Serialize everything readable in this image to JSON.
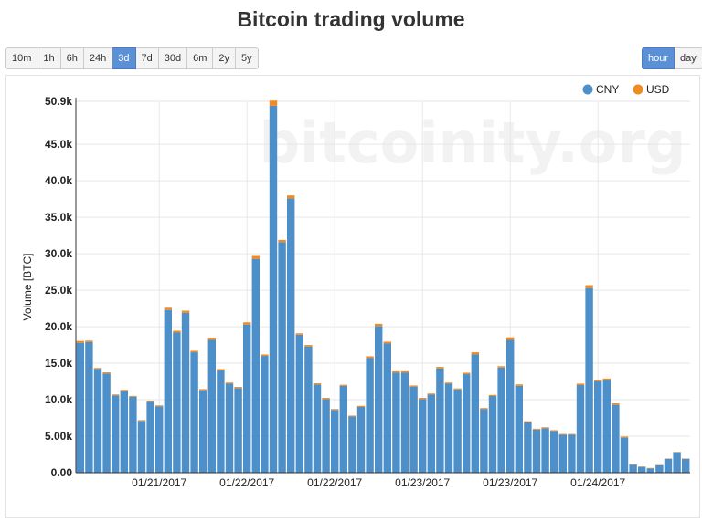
{
  "title": "Bitcoin trading volume",
  "range_buttons": [
    {
      "label": "10m",
      "active": false
    },
    {
      "label": "1h",
      "active": false
    },
    {
      "label": "6h",
      "active": false
    },
    {
      "label": "24h",
      "active": false
    },
    {
      "label": "3d",
      "active": true
    },
    {
      "label": "7d",
      "active": false
    },
    {
      "label": "30d",
      "active": false
    },
    {
      "label": "6m",
      "active": false
    },
    {
      "label": "2y",
      "active": false
    },
    {
      "label": "5y",
      "active": false
    }
  ],
  "resolution_buttons": [
    {
      "label": "hour",
      "active": true
    },
    {
      "label": "day",
      "active": false
    }
  ],
  "watermark": "bitcoinity.org",
  "chart_data": {
    "type": "bar",
    "stacked": true,
    "ylabel": "Volume [BTC]",
    "ylim": [
      0,
      50900
    ],
    "yticks": [
      {
        "value": 0,
        "label": "0.00"
      },
      {
        "value": 5000,
        "label": "5.00k"
      },
      {
        "value": 10000,
        "label": "10.0k"
      },
      {
        "value": 15000,
        "label": "15.0k"
      },
      {
        "value": 20000,
        "label": "20.0k"
      },
      {
        "value": 25000,
        "label": "25.0k"
      },
      {
        "value": 30000,
        "label": "30.0k"
      },
      {
        "value": 35000,
        "label": "35.0k"
      },
      {
        "value": 40000,
        "label": "40.0k"
      },
      {
        "value": 45000,
        "label": "45.0k"
      },
      {
        "value": 50900,
        "label": "50.9k"
      }
    ],
    "xticks": [
      {
        "index": 9.5,
        "label": "01/21/2017"
      },
      {
        "index": 19.5,
        "label": "01/22/2017"
      },
      {
        "index": 29.5,
        "label": "01/22/2017"
      },
      {
        "index": 39.5,
        "label": "01/23/2017"
      },
      {
        "index": 49.5,
        "label": "01/23/2017"
      },
      {
        "index": 59.5,
        "label": "01/24/2017"
      }
    ],
    "grid": true,
    "legend_position": "top-right",
    "series": [
      {
        "name": "CNY",
        "color": "#4d8fc8",
        "values": [
          17800,
          17900,
          14200,
          13600,
          10600,
          11200,
          10400,
          7100,
          9700,
          9100,
          22300,
          19200,
          21900,
          16500,
          11300,
          18200,
          14000,
          12200,
          11600,
          20300,
          29300,
          16000,
          50300,
          31600,
          37600,
          18900,
          17300,
          12100,
          10100,
          8600,
          11900,
          7700,
          9000,
          15700,
          20100,
          17700,
          13700,
          13700,
          11800,
          10100,
          10700,
          14300,
          12200,
          11400,
          13500,
          16200,
          8700,
          10500,
          14400,
          18200,
          11900,
          6900,
          5900,
          6100,
          5700,
          5200,
          5200,
          12000,
          25300,
          12500,
          12700,
          9300,
          4800,
          1100,
          800,
          600,
          1000,
          1900,
          2800,
          1900
        ]
      },
      {
        "name": "USD",
        "color": "#f28a22",
        "values": [
          250,
          200,
          150,
          150,
          120,
          150,
          120,
          100,
          120,
          120,
          300,
          250,
          300,
          200,
          150,
          300,
          200,
          150,
          150,
          300,
          400,
          200,
          700,
          300,
          400,
          200,
          200,
          150,
          150,
          120,
          150,
          120,
          150,
          250,
          300,
          250,
          200,
          200,
          150,
          150,
          150,
          200,
          150,
          150,
          200,
          300,
          150,
          150,
          200,
          350,
          200,
          150,
          120,
          120,
          120,
          100,
          100,
          200,
          400,
          200,
          200,
          200,
          150,
          50,
          50,
          50,
          50,
          50,
          50,
          50
        ]
      }
    ]
  }
}
